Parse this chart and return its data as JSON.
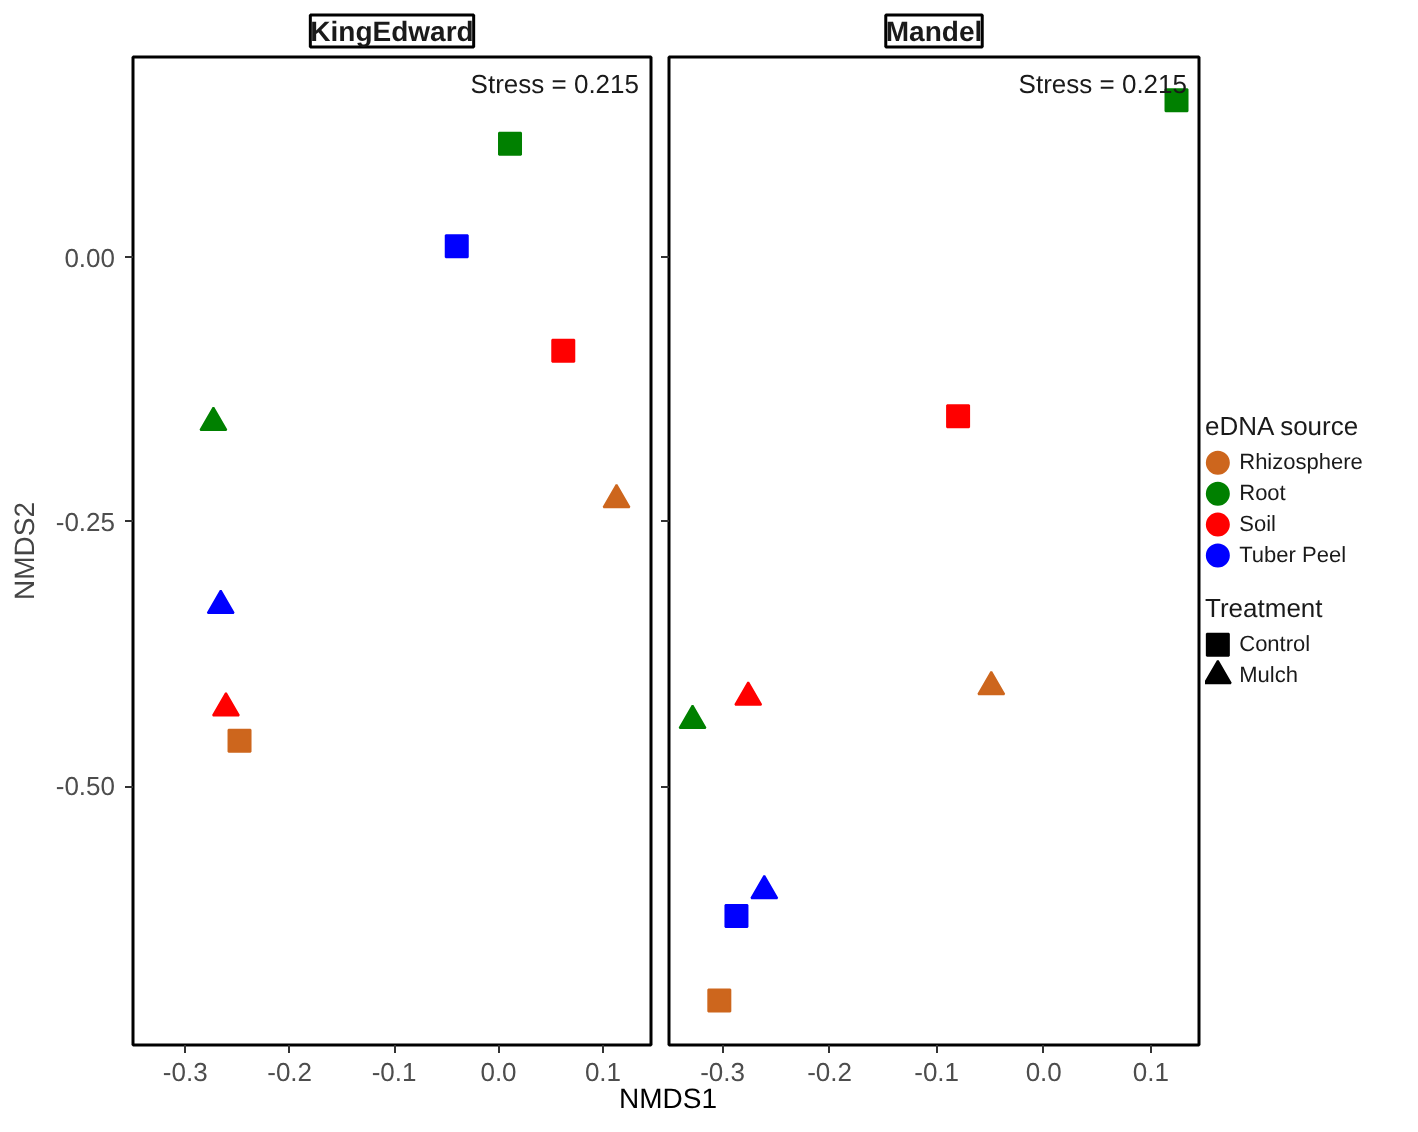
{
  "chart_data": [
    {
      "type": "scatter",
      "title": "KingEdward",
      "ylabel": "NMDS2",
      "xlabel": "NMDS1",
      "xlim": [
        -0.35,
        0.146
      ],
      "ylim": [
        -0.745,
        0.19
      ],
      "xticks": [
        -0.3,
        -0.2,
        -0.1,
        {
          "value": 0,
          "label": "0.0"
        },
        0.1
      ],
      "yticks": [
        {
          "value": -0.5,
          "label": "-0.50"
        },
        {
          "value": -0.25,
          "label": "-0.25"
        },
        {
          "value": 0,
          "label": "0.00"
        }
      ],
      "grid": false,
      "annotations": [
        "Stress = 0.215"
      ],
      "series": [
        {
          "color": "#cd661d",
          "marker": "square",
          "x": [
            -0.248
          ],
          "values": [
            -0.457
          ]
        },
        {
          "color": "#008000",
          "marker": "square",
          "x": [
            0.011
          ],
          "values": [
            0.108
          ]
        },
        {
          "color": "#ff0000",
          "marker": "square",
          "x": [
            0.062
          ],
          "values": [
            -0.088
          ]
        },
        {
          "color": "#0000ff",
          "marker": "square",
          "x": [
            -0.04
          ],
          "values": [
            0.011
          ]
        },
        {
          "color": "#cd661d",
          "marker": "triangle",
          "x": [
            0.113
          ],
          "values": [
            -0.229
          ]
        },
        {
          "color": "#008000",
          "marker": "triangle",
          "x": [
            -0.273
          ],
          "values": [
            -0.156
          ]
        },
        {
          "color": "#ff0000",
          "marker": "triangle",
          "x": [
            -0.261
          ],
          "values": [
            -0.426
          ]
        },
        {
          "color": "#0000ff",
          "marker": "triangle",
          "x": [
            -0.266
          ],
          "values": [
            -0.329
          ]
        }
      ]
    },
    {
      "type": "scatter",
      "title": "Mandel",
      "xlim": [
        -0.35,
        0.145
      ],
      "ylim": [
        -0.745,
        0.19
      ],
      "xticks": [
        -0.3,
        -0.2,
        -0.1,
        {
          "value": 0,
          "label": "0.0"
        },
        0.1
      ],
      "yticks": [
        {
          "value": -0.5,
          "label": null
        },
        {
          "value": -0.25,
          "label": null
        },
        {
          "value": 0,
          "label": null
        }
      ],
      "tick_labels": "x",
      "grid": false,
      "annotations": [
        "Stress = 0.215",
        "Treatment"
      ],
      "legend": "right",
      "legend_title": "eDNA source",
      "series": [
        {
          "name": "Rhizosphere",
          "color": "#cd661d",
          "marker": "square",
          "x": [
            -0.303
          ],
          "values": [
            -0.703
          ]
        },
        {
          "name": "Root",
          "color": "#008000",
          "marker": "square",
          "x": [
            0.124
          ],
          "values": [
            0.149
          ]
        },
        {
          "name": "Soil",
          "color": "#ff0000",
          "marker": "square",
          "x": [
            -0.08
          ],
          "values": [
            -0.15
          ]
        },
        {
          "name": "Tuber Peel",
          "color": "#0000ff",
          "marker": "square",
          "x": [
            -0.287
          ],
          "values": [
            -0.623
          ]
        },
        {
          "color": "#cd661d",
          "marker": "triangle",
          "x": [
            -0.049
          ],
          "values": [
            -0.406
          ]
        },
        {
          "color": "#008000",
          "marker": "triangle",
          "x": [
            -0.328
          ],
          "values": [
            -0.438
          ]
        },
        {
          "color": "#ff0000",
          "marker": "triangle",
          "x": [
            -0.276
          ],
          "values": [
            -0.416
          ]
        },
        {
          "color": "#0000ff",
          "marker": "triangle",
          "x": [
            -0.261
          ],
          "values": [
            -0.599
          ]
        },
        {
          "name": "Control",
          "color": "#000000",
          "marker": "square",
          "x": [
            null
          ],
          "values": [
            null
          ]
        },
        {
          "name": "Mulch",
          "color": "#000000",
          "marker": "triangle",
          "x": [
            null
          ],
          "values": [
            null
          ]
        }
      ]
    }
  ]
}
